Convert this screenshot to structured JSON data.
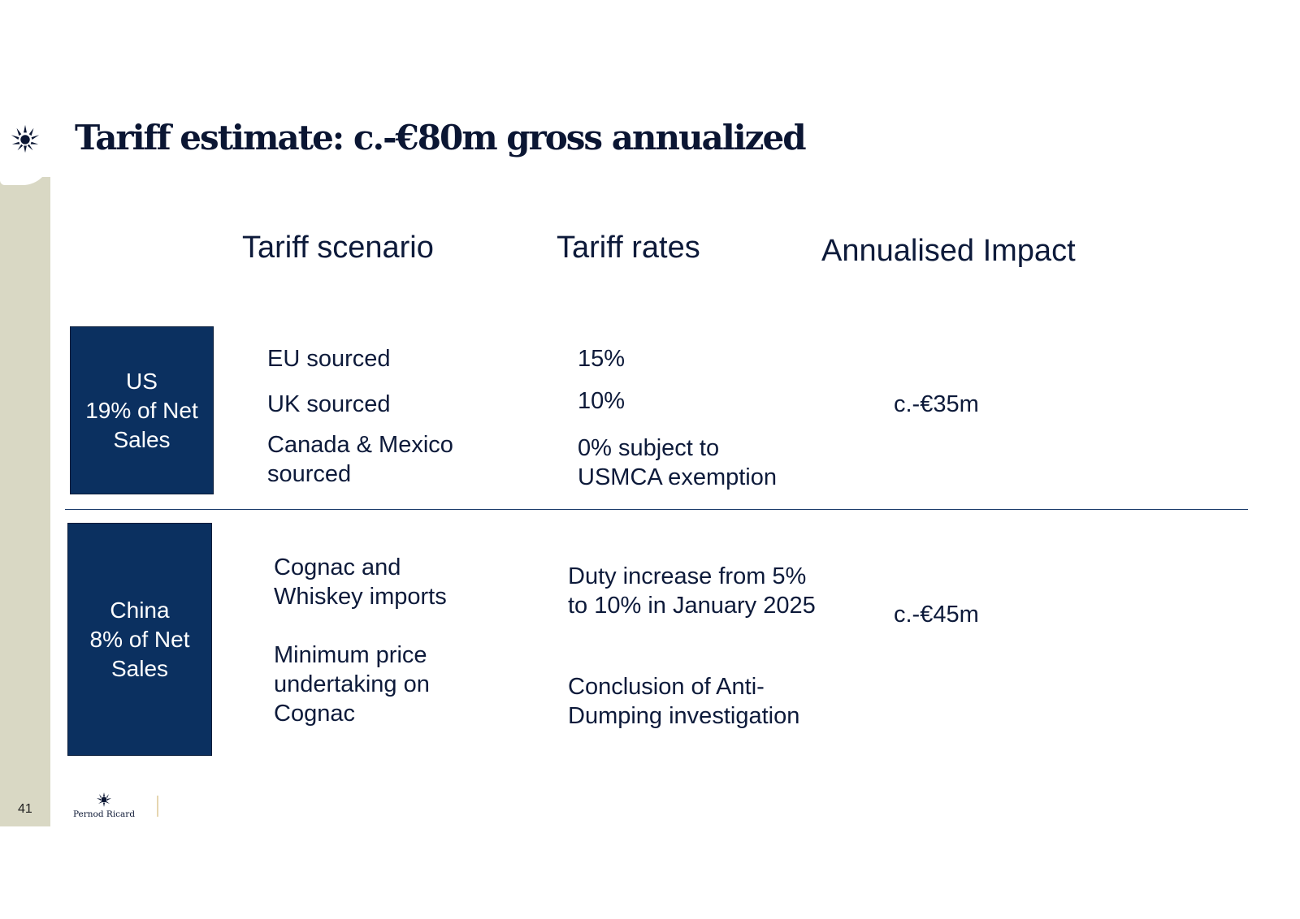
{
  "slide": {
    "title": "Tariff estimate: c.-€80m gross annualized",
    "page_number": "41"
  },
  "headers": {
    "scenario": "Tariff scenario",
    "rates": "Tariff rates",
    "impact": "Annualised Impact"
  },
  "regions": [
    {
      "name": "US",
      "share": "19% of Net",
      "share_tail": "Sales",
      "rows": [
        {
          "scenario": "EU sourced",
          "rate": "15%"
        },
        {
          "scenario": "UK sourced",
          "rate": "10%"
        },
        {
          "scenario": "Canada & Mexico\nsourced",
          "rate": "0% subject to\nUSMCA exemption"
        }
      ],
      "impact": "c.-€35m"
    },
    {
      "name": "China",
      "share": "8% of Net",
      "share_tail": "Sales",
      "rows": [
        {
          "scenario": "Cognac and\nWhiskey imports",
          "rate": "Duty increase from 5%\nto 10% in January 2025"
        },
        {
          "scenario": "Minimum price\nundertaking on\nCognac",
          "rate": "Conclusion of Anti-\nDumping investigation"
        }
      ],
      "impact": "c.-€45m"
    }
  ],
  "brand": {
    "logo_text": "Pernod Ricard",
    "accent": "#0b3060",
    "sidebar_color": "#d9d8c4"
  }
}
